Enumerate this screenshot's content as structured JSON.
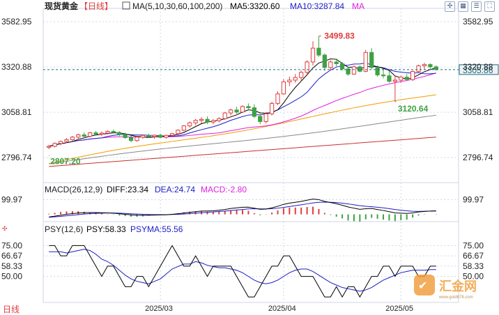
{
  "header": {
    "title": "现货黄金",
    "period": "【日线】",
    "ma_label": "MA(5,10,30,60,100,200)",
    "ma5_label": "MA5:3320.60",
    "ma10_label": "MA10:3287.84",
    "ma_extra_label": "MA"
  },
  "toolbar": {
    "icons": [
      "expand-icon",
      "grid-icon",
      "settings-icon",
      "fullscreen-icon"
    ]
  },
  "colors": {
    "up": "#e03c3c",
    "down": "#3fa144",
    "ma5": "#000000",
    "ma10": "#1c1cc8",
    "ma30": "#e020e0",
    "ma60": "#f59a00",
    "ma100": "#888888",
    "ma200": "#c83030",
    "psy": "#000000",
    "psyma": "#1c1cc8",
    "diff": "#000000",
    "dea": "#1c1cc8",
    "grid": "#cfd6e6",
    "dashed": "#1a6a7a"
  },
  "axis": {
    "price_ticks": [
      "3582.95",
      "3320.88",
      "3058.81",
      "2796.74"
    ],
    "current_price": "3305.86",
    "macd_tick": "99.97",
    "psy_ticks": [
      "75.00",
      "66.67",
      "58.33",
      "50.00"
    ],
    "dates": [
      "2025/03",
      "2025/04",
      "2025/05"
    ]
  },
  "annotations": {
    "high": "3499.83",
    "low1": "2807.20",
    "low2": "3120.64"
  },
  "macd_header": {
    "name": "MACD(26,12,9)",
    "diff": "DIFF:23.34",
    "dea": "DEA:24.74",
    "macd": "MACD:-2.80"
  },
  "psy_header": {
    "name": "PSY(12,6)",
    "psy": "PSY:58.33",
    "psyma": "PSYMA:55.56"
  },
  "bottom_label": "日线",
  "watermark": {
    "text": "汇金网",
    "url": "www.gold678.com"
  },
  "chart_data": {
    "type": "candlestick",
    "ohlc": [
      [
        2856,
        2870,
        2845,
        2862
      ],
      [
        2862,
        2885,
        2855,
        2878
      ],
      [
        2878,
        2895,
        2868,
        2890
      ],
      [
        2890,
        2910,
        2880,
        2900
      ],
      [
        2900,
        2922,
        2893,
        2915
      ],
      [
        2915,
        2935,
        2906,
        2928
      ],
      [
        2928,
        2942,
        2915,
        2920
      ],
      [
        2920,
        2945,
        2912,
        2940
      ],
      [
        2940,
        2950,
        2925,
        2932
      ],
      [
        2932,
        2948,
        2920,
        2938
      ],
      [
        2938,
        2955,
        2930,
        2948
      ],
      [
        2948,
        2958,
        2935,
        2942
      ],
      [
        2942,
        2950,
        2920,
        2930
      ],
      [
        2930,
        2940,
        2905,
        2912
      ],
      [
        2912,
        2925,
        2885,
        2895
      ],
      [
        2895,
        2920,
        2888,
        2915
      ],
      [
        2915,
        2930,
        2905,
        2925
      ],
      [
        2925,
        2935,
        2910,
        2918
      ],
      [
        2918,
        2930,
        2905,
        2926
      ],
      [
        2926,
        2935,
        2908,
        2914
      ],
      [
        2914,
        2930,
        2905,
        2925
      ],
      [
        2925,
        2940,
        2915,
        2935
      ],
      [
        2935,
        2960,
        2925,
        2955
      ],
      [
        2955,
        2985,
        2948,
        2980
      ],
      [
        2980,
        3005,
        2970,
        2998
      ],
      [
        2998,
        3020,
        2985,
        3012
      ],
      [
        3012,
        3030,
        2995,
        3018
      ],
      [
        3018,
        3035,
        2990,
        3002
      ],
      [
        3002,
        3020,
        2990,
        3010
      ],
      [
        3010,
        3030,
        3000,
        3022
      ],
      [
        3022,
        3060,
        3015,
        3055
      ],
      [
        3055,
        3080,
        3040,
        3072
      ],
      [
        3072,
        3090,
        3050,
        3060
      ],
      [
        3060,
        3100,
        3055,
        3092
      ],
      [
        3092,
        3110,
        3070,
        3085
      ],
      [
        3085,
        3105,
        3025,
        3035
      ],
      [
        3035,
        3050,
        2990,
        3005
      ],
      [
        3005,
        3060,
        2995,
        3050
      ],
      [
        3050,
        3120,
        3040,
        3110
      ],
      [
        3110,
        3180,
        3100,
        3165
      ],
      [
        3165,
        3250,
        3160,
        3235
      ],
      [
        3235,
        3265,
        3210,
        3245
      ],
      [
        3245,
        3280,
        3230,
        3260
      ],
      [
        3260,
        3300,
        3240,
        3290
      ],
      [
        3290,
        3360,
        3270,
        3350
      ],
      [
        3350,
        3470,
        3330,
        3430
      ],
      [
        3430,
        3500,
        3380,
        3390
      ],
      [
        3390,
        3400,
        3300,
        3318
      ],
      [
        3318,
        3360,
        3300,
        3350
      ],
      [
        3350,
        3370,
        3325,
        3340
      ],
      [
        3340,
        3350,
        3300,
        3310
      ],
      [
        3310,
        3320,
        3270,
        3280
      ],
      [
        3280,
        3330,
        3275,
        3322
      ],
      [
        3322,
        3330,
        3290,
        3296
      ],
      [
        3296,
        3420,
        3290,
        3405
      ],
      [
        3405,
        3430,
        3310,
        3318
      ],
      [
        3318,
        3330,
        3265,
        3275
      ],
      [
        3275,
        3310,
        3255,
        3270
      ],
      [
        3270,
        3300,
        3230,
        3238
      ],
      [
        3238,
        3270,
        3120,
        3245
      ],
      [
        3245,
        3270,
        3230,
        3262
      ],
      [
        3262,
        3280,
        3245,
        3248
      ],
      [
        3248,
        3300,
        3240,
        3295
      ],
      [
        3295,
        3335,
        3285,
        3328
      ],
      [
        3328,
        3345,
        3305,
        3335
      ],
      [
        3335,
        3342,
        3310,
        3322
      ],
      [
        3322,
        3330,
        3300,
        3306
      ]
    ],
    "price_range": [
      2680,
      3620
    ],
    "macd_diff": [
      -18,
      -12,
      -6,
      0,
      5,
      9,
      11,
      12,
      12,
      11,
      10,
      8,
      4,
      0,
      -4,
      -6,
      -7,
      -6,
      -5,
      -4,
      -3,
      0,
      4,
      9,
      14,
      18,
      22,
      23,
      24,
      28,
      33,
      40,
      44,
      48,
      49,
      42,
      34,
      36,
      44,
      55,
      68,
      76,
      82,
      88,
      96,
      104,
      100,
      88,
      80,
      72,
      62,
      50,
      42,
      34,
      38,
      40,
      33,
      26,
      18,
      10,
      8,
      6,
      10,
      16,
      20,
      22,
      23
    ],
    "macd_dea": [
      -20,
      -17,
      -14,
      -10,
      -6,
      -2,
      2,
      5,
      7,
      8,
      9,
      9,
      8,
      6,
      4,
      2,
      0,
      -1,
      -2,
      -2,
      -2,
      -1,
      0,
      2,
      5,
      8,
      11,
      14,
      16,
      19,
      22,
      26,
      30,
      33,
      37,
      38,
      37,
      37,
      38,
      42,
      47,
      53,
      59,
      65,
      71,
      78,
      82,
      83,
      82,
      80,
      76,
      71,
      65,
      59,
      55,
      52,
      48,
      44,
      39,
      33,
      28,
      24,
      21,
      20,
      21,
      22,
      24
    ],
    "macd_ylim": [
      -40,
      140
    ],
    "psy": [
      75,
      75,
      66.67,
      66.67,
      75,
      75,
      75,
      66.67,
      58.33,
      50,
      58.33,
      58.33,
      50,
      41.67,
      41.67,
      50,
      50,
      41.67,
      50,
      58.33,
      66.67,
      75,
      66.67,
      58.33,
      58.33,
      66.67,
      58.33,
      50,
      58.33,
      58.33,
      58.33,
      58.33,
      50,
      41.67,
      33.33,
      33.33,
      41.67,
      50,
      58.33,
      58.33,
      66.67,
      66.67,
      58.33,
      50,
      50,
      50,
      41.67,
      33.33,
      33.33,
      41.67,
      33.33,
      41.67,
      41.67,
      33.33,
      41.67,
      50,
      50,
      58.33,
      58.33,
      50,
      58.33,
      58.33,
      58.33,
      50,
      50,
      58.33,
      58.33
    ],
    "psyma": [
      70,
      70,
      70,
      69,
      70,
      71,
      72,
      71,
      68,
      64,
      62,
      59,
      55,
      51,
      48,
      46,
      45,
      44,
      46,
      48,
      52,
      56,
      58,
      60,
      60,
      62,
      61,
      59,
      58,
      57,
      57,
      56,
      55,
      53,
      50,
      47,
      45,
      44,
      45,
      47,
      50,
      53,
      55,
      56,
      56,
      54,
      51,
      48,
      45,
      43,
      41,
      40,
      39,
      38,
      39,
      41,
      44,
      47,
      49,
      51,
      53,
      54,
      55,
      55,
      55,
      55.5,
      55.56
    ],
    "psy_ylim": [
      30,
      82
    ]
  }
}
